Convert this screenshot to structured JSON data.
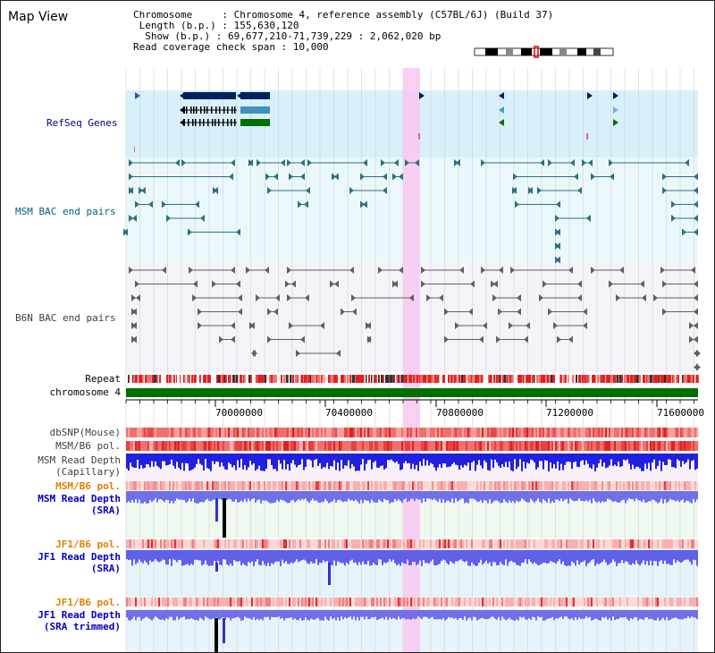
{
  "header": {
    "title": "Map View",
    "chromosome_key": "Chromosome",
    "chromosome_value": "Chromosome 4, reference assembly (C57BL/6J) (Build 37)",
    "length_key": "Length (b.p.)",
    "length_value": "155,630,120",
    "show_key": "Show (b.p.)",
    "show_value": "69,677,210-71,739,229 : 2,062,020 bp",
    "coverage_key": "Read coverage check span",
    "coverage_value": "10,000"
  },
  "tracks": {
    "refseq": "RefSeq Genes",
    "msm_bac": "MSM BAC end pairs",
    "b6n_bac": "B6N BAC end pairs",
    "repeat": "Repeat",
    "chromosome": "chromosome 4",
    "dbsnp": "dbSNP(Mouse)",
    "msm_b6_pol": "MSM/B6 pol.",
    "msm_depth_cap_1": "MSM Read Depth",
    "msm_depth_cap_2": "(Capillary)",
    "msm_b6_pol_2": "MSM/B6 pol.",
    "msm_depth_sra_1": "MSM Read Depth",
    "msm_depth_sra_2": "(SRA)",
    "jf1_b6_pol": "JF1/B6 pol.",
    "jf1_depth_sra_1": "JF1 Read Depth",
    "jf1_depth_sra_2": "(SRA)",
    "jf1_b6_pol_2": "JF1/B6 pol.",
    "jf1_depth_trim_1": "JF1 Read Depth",
    "jf1_depth_trim_2": "(SRA trimmed)"
  },
  "axis": {
    "ticks": [
      "70000000",
      "70400000",
      "70800000",
      "71200000",
      "71600000"
    ]
  },
  "colors": {
    "refseq_label": "#000080",
    "msm_bac_label": "#006080",
    "b6n_label": "#404040",
    "pol_label": "#e08000",
    "depth_label": "#0000c0",
    "highlight": "#f8c8f0",
    "chromosome_bar": "#007000"
  }
}
